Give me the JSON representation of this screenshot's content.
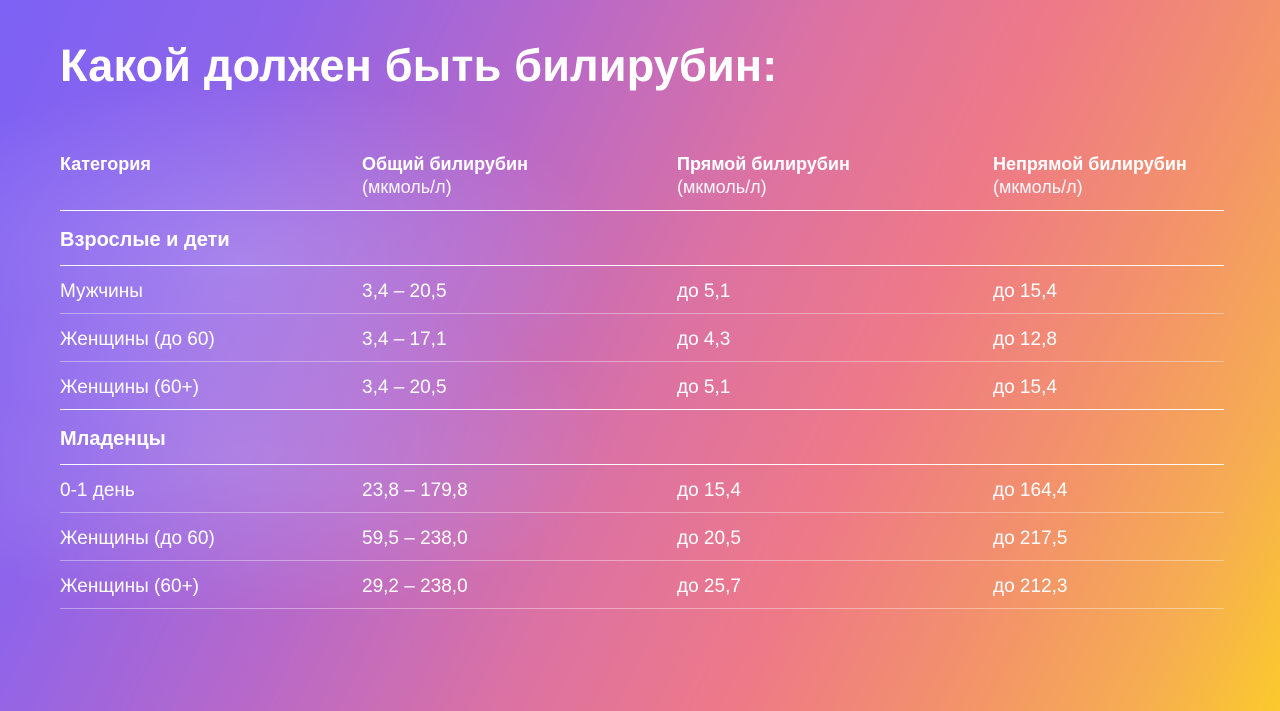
{
  "title": "Какой должен быть билирубин:",
  "table": {
    "headers": [
      {
        "label": "Категория",
        "unit": ""
      },
      {
        "label": "Общий билирубин",
        "unit": "(мкмоль/л)"
      },
      {
        "label": "Прямой билирубин",
        "unit": "(мкмоль/л)"
      },
      {
        "label": "Непрямой билирубин",
        "unit": "(мкмоль/л)"
      }
    ],
    "groups": [
      {
        "name": "Взрослые и дети",
        "rows": [
          [
            "Мужчины",
            "3,4 – 20,5",
            "до 5,1",
            "до 15,4"
          ],
          [
            "Женщины (до 60)",
            "3,4 – 17,1",
            "до 4,3",
            "до 12,8"
          ],
          [
            "Женщины (60+)",
            "3,4 – 20,5",
            "до 5,1",
            "до 15,4"
          ]
        ]
      },
      {
        "name": "Младенцы",
        "rows": [
          [
            "0-1 день",
            "23,8 – 179,8",
            "до 15,4",
            "до 164,4"
          ],
          [
            "Женщины (до 60)",
            "59,5 – 238,0",
            "до 20,5",
            "до 217,5"
          ],
          [
            "Женщины (60+)",
            "29,2 – 238,0",
            "до 25,7",
            "до 212,3"
          ]
        ]
      }
    ]
  }
}
